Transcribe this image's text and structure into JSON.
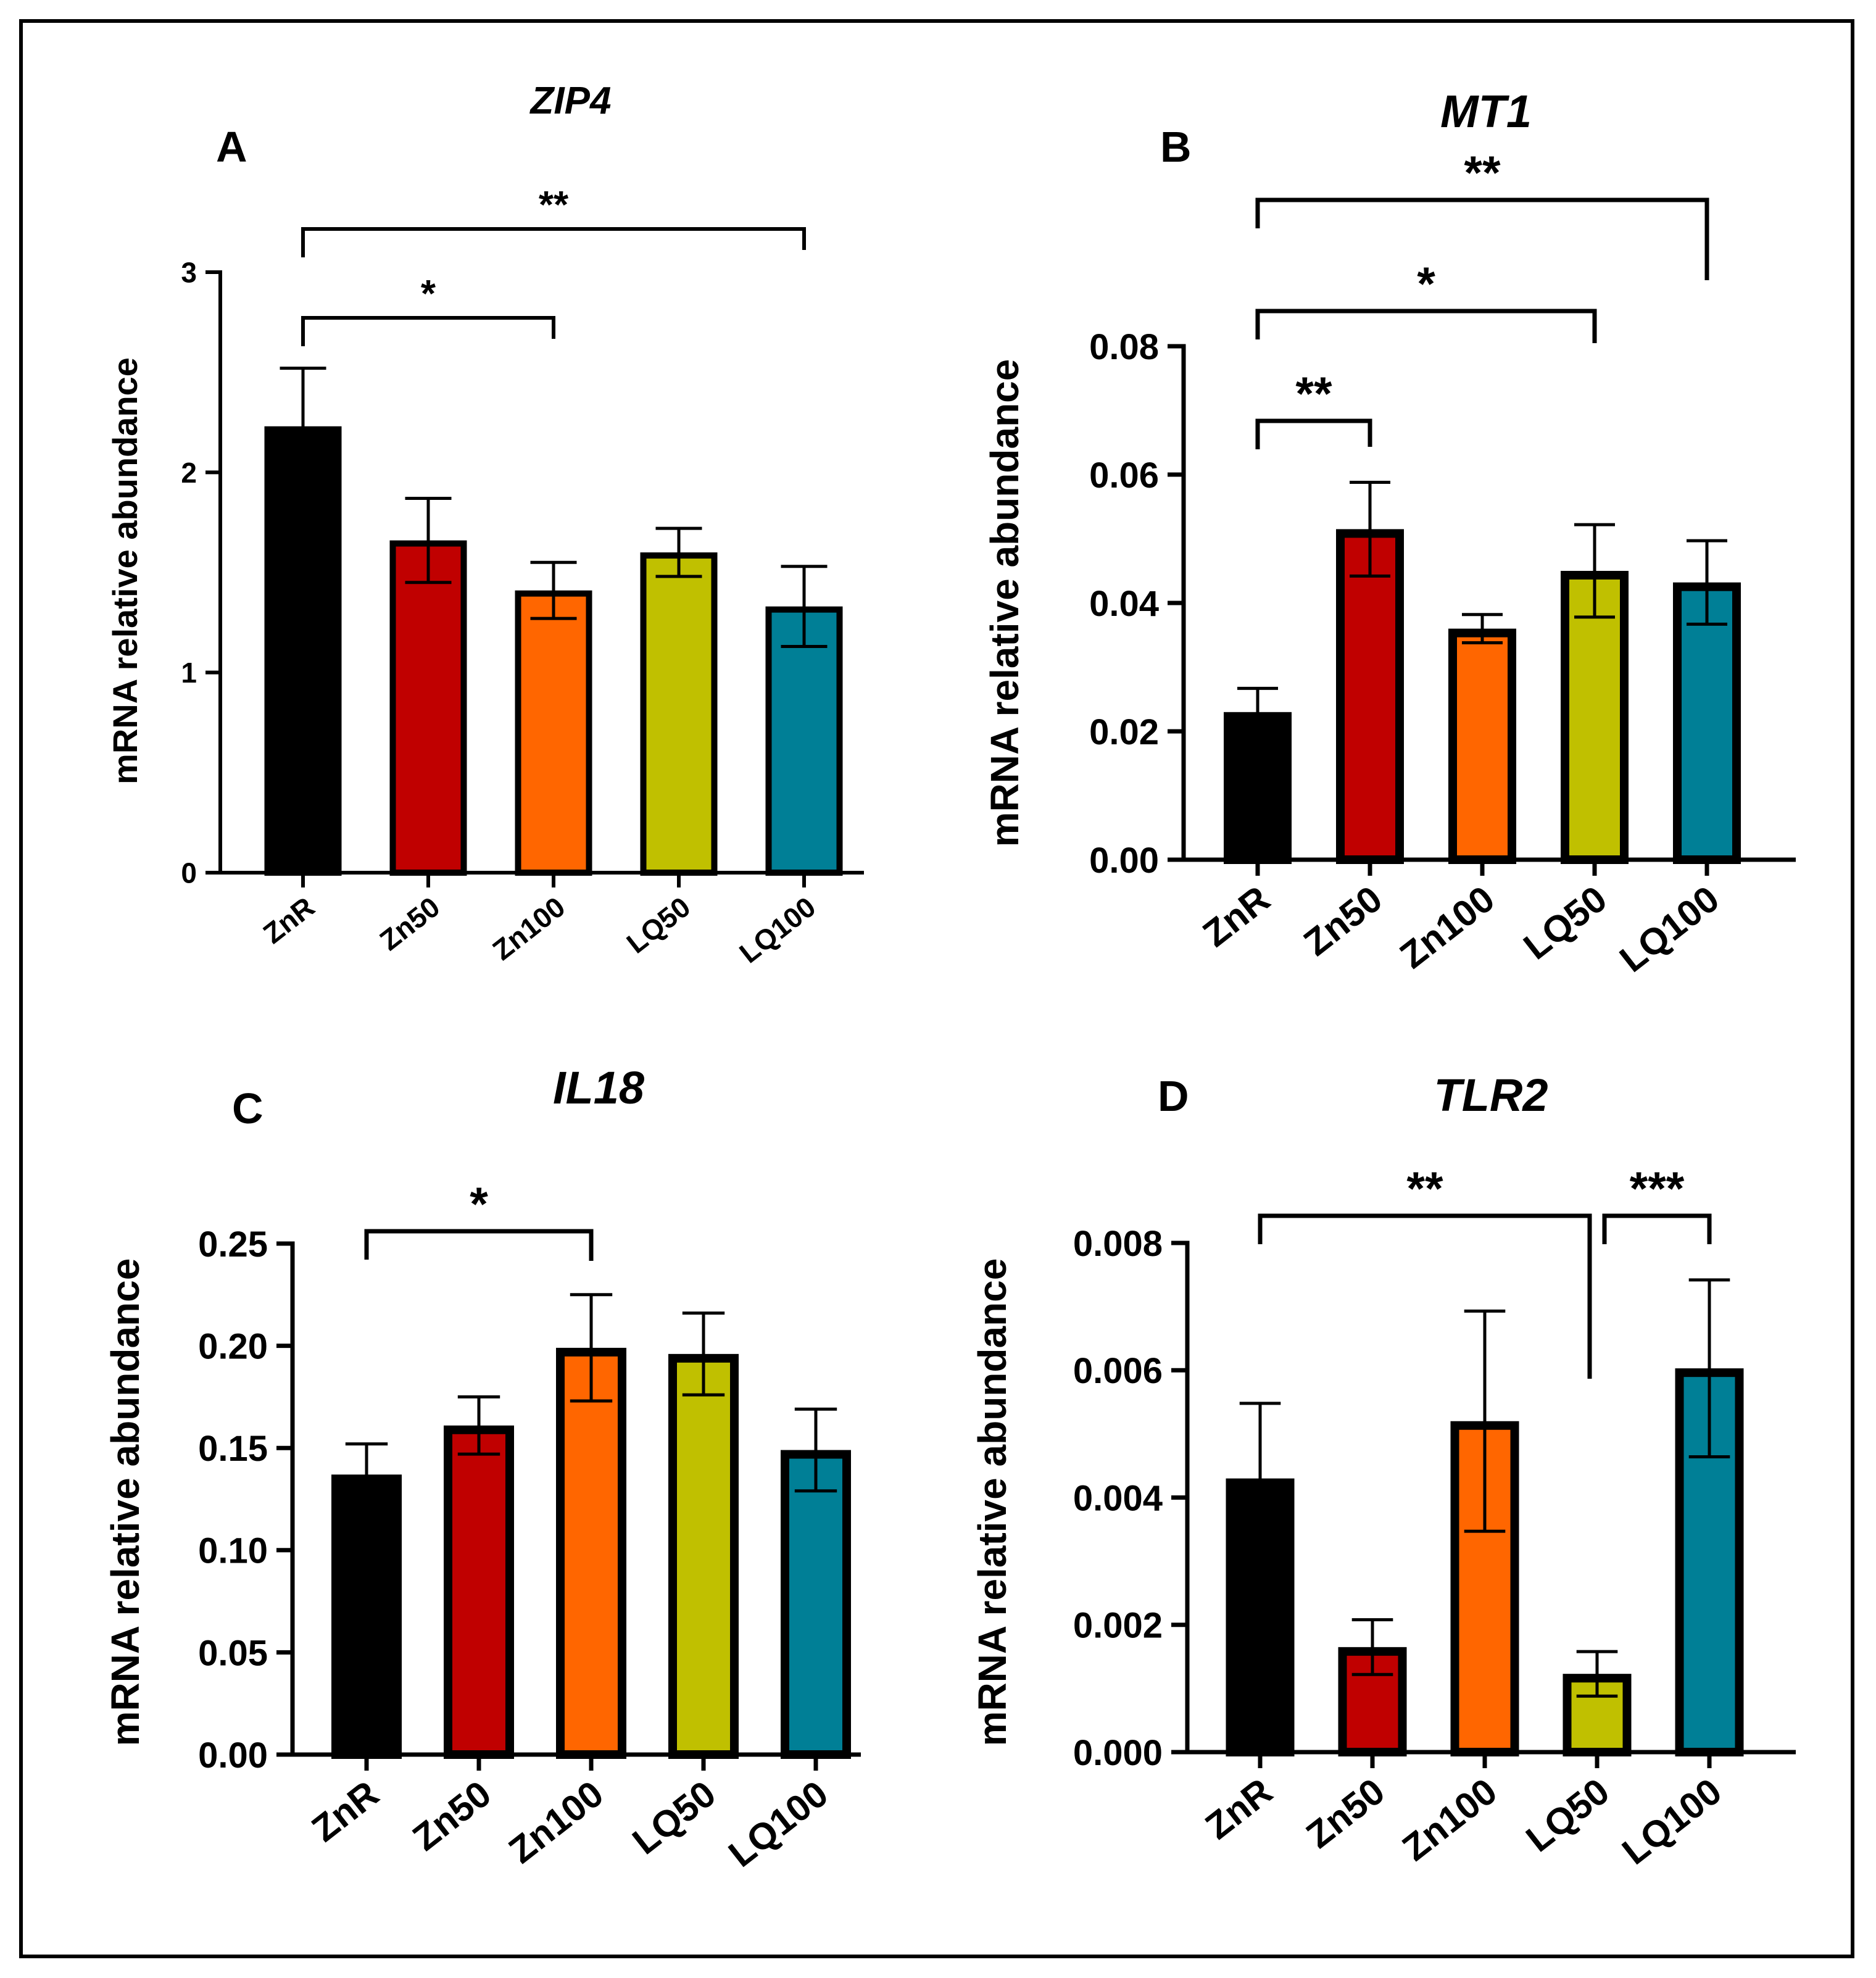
{
  "chart_data": [
    {
      "type": "bar",
      "panel": "A",
      "title": "ZIP4",
      "xlabel": "",
      "ylabel": "mRNA relative abundance",
      "categories": [
        "ZnR",
        "Zn50",
        "Zn100",
        "LQ50",
        "LQ100"
      ],
      "values": [
        2.23,
        1.66,
        1.41,
        1.6,
        1.33
      ],
      "errors": [
        0.29,
        0.21,
        0.14,
        0.12,
        0.2
      ],
      "ylim": [
        0,
        3
      ],
      "yticks": [
        0,
        1,
        2,
        3
      ],
      "ytick_labels": [
        "0",
        "1",
        "2",
        "3"
      ],
      "colors": [
        "#000000",
        "#c00000",
        "#ff6600",
        "#c0c000",
        "#007f96"
      ],
      "significance": [
        {
          "from": 0,
          "to": 2,
          "label": "*"
        },
        {
          "from": 0,
          "to": 4,
          "label": "**"
        }
      ]
    },
    {
      "type": "bar",
      "panel": "B",
      "title": "MT1",
      "xlabel": "",
      "ylabel": "mRNA relative abundance",
      "categories": [
        "ZnR",
        "Zn50",
        "Zn100",
        "LQ50",
        "LQ100"
      ],
      "values": [
        0.023,
        0.0515,
        0.036,
        0.045,
        0.0432
      ],
      "errors": [
        0.0037,
        0.0073,
        0.0022,
        0.0072,
        0.0065
      ],
      "ylim": [
        0,
        0.08
      ],
      "yticks": [
        0,
        0.02,
        0.04,
        0.06,
        0.08
      ],
      "ytick_labels": [
        "0.00",
        "0.02",
        "0.04",
        "0.06",
        "0.08"
      ],
      "colors": [
        "#000000",
        "#c00000",
        "#ff6600",
        "#c0c000",
        "#007f96"
      ],
      "significance": [
        {
          "from": 0,
          "to": 1,
          "label": "**"
        },
        {
          "from": 0,
          "to": 3,
          "label": "*"
        },
        {
          "from": 0,
          "to": 4,
          "label": "**"
        }
      ]
    },
    {
      "type": "bar",
      "panel": "C",
      "title": "IL18",
      "xlabel": "",
      "ylabel": "mRNA relative abundance",
      "categories": [
        "ZnR",
        "Zn50",
        "Zn100",
        "LQ50",
        "LQ100"
      ],
      "values": [
        0.137,
        0.161,
        0.199,
        0.196,
        0.149
      ],
      "errors": [
        0.015,
        0.014,
        0.026,
        0.02,
        0.02
      ],
      "ylim": [
        0,
        0.25
      ],
      "yticks": [
        0,
        0.05,
        0.1,
        0.15,
        0.2,
        0.25
      ],
      "ytick_labels": [
        "0.00",
        "0.05",
        "0.10",
        "0.15",
        "0.20",
        "0.25"
      ],
      "colors": [
        "#000000",
        "#c00000",
        "#ff6600",
        "#c0c000",
        "#007f96"
      ],
      "significance": [
        {
          "from": 0,
          "to": 2,
          "label": "*"
        }
      ]
    },
    {
      "type": "bar",
      "panel": "D",
      "title": "TLR2",
      "xlabel": "",
      "ylabel": "mRNA relative abundance",
      "categories": [
        "ZnR",
        "Zn50",
        "Zn100",
        "LQ50",
        "LQ100"
      ],
      "values": [
        0.0043,
        0.00165,
        0.0052,
        0.00123,
        0.00603
      ],
      "errors": [
        0.00118,
        0.00043,
        0.00173,
        0.00035,
        0.00139
      ],
      "ylim": [
        0,
        0.008
      ],
      "yticks": [
        0,
        0.002,
        0.004,
        0.006,
        0.008
      ],
      "ytick_labels": [
        "0.000",
        "0.002",
        "0.004",
        "0.006",
        "0.008"
      ],
      "colors": [
        "#000000",
        "#c00000",
        "#ff6600",
        "#c0c000",
        "#007f96"
      ],
      "significance": [
        {
          "from": 0,
          "to": 3,
          "label": "**"
        },
        {
          "from": 3,
          "to": 4,
          "label": "***"
        }
      ]
    }
  ]
}
